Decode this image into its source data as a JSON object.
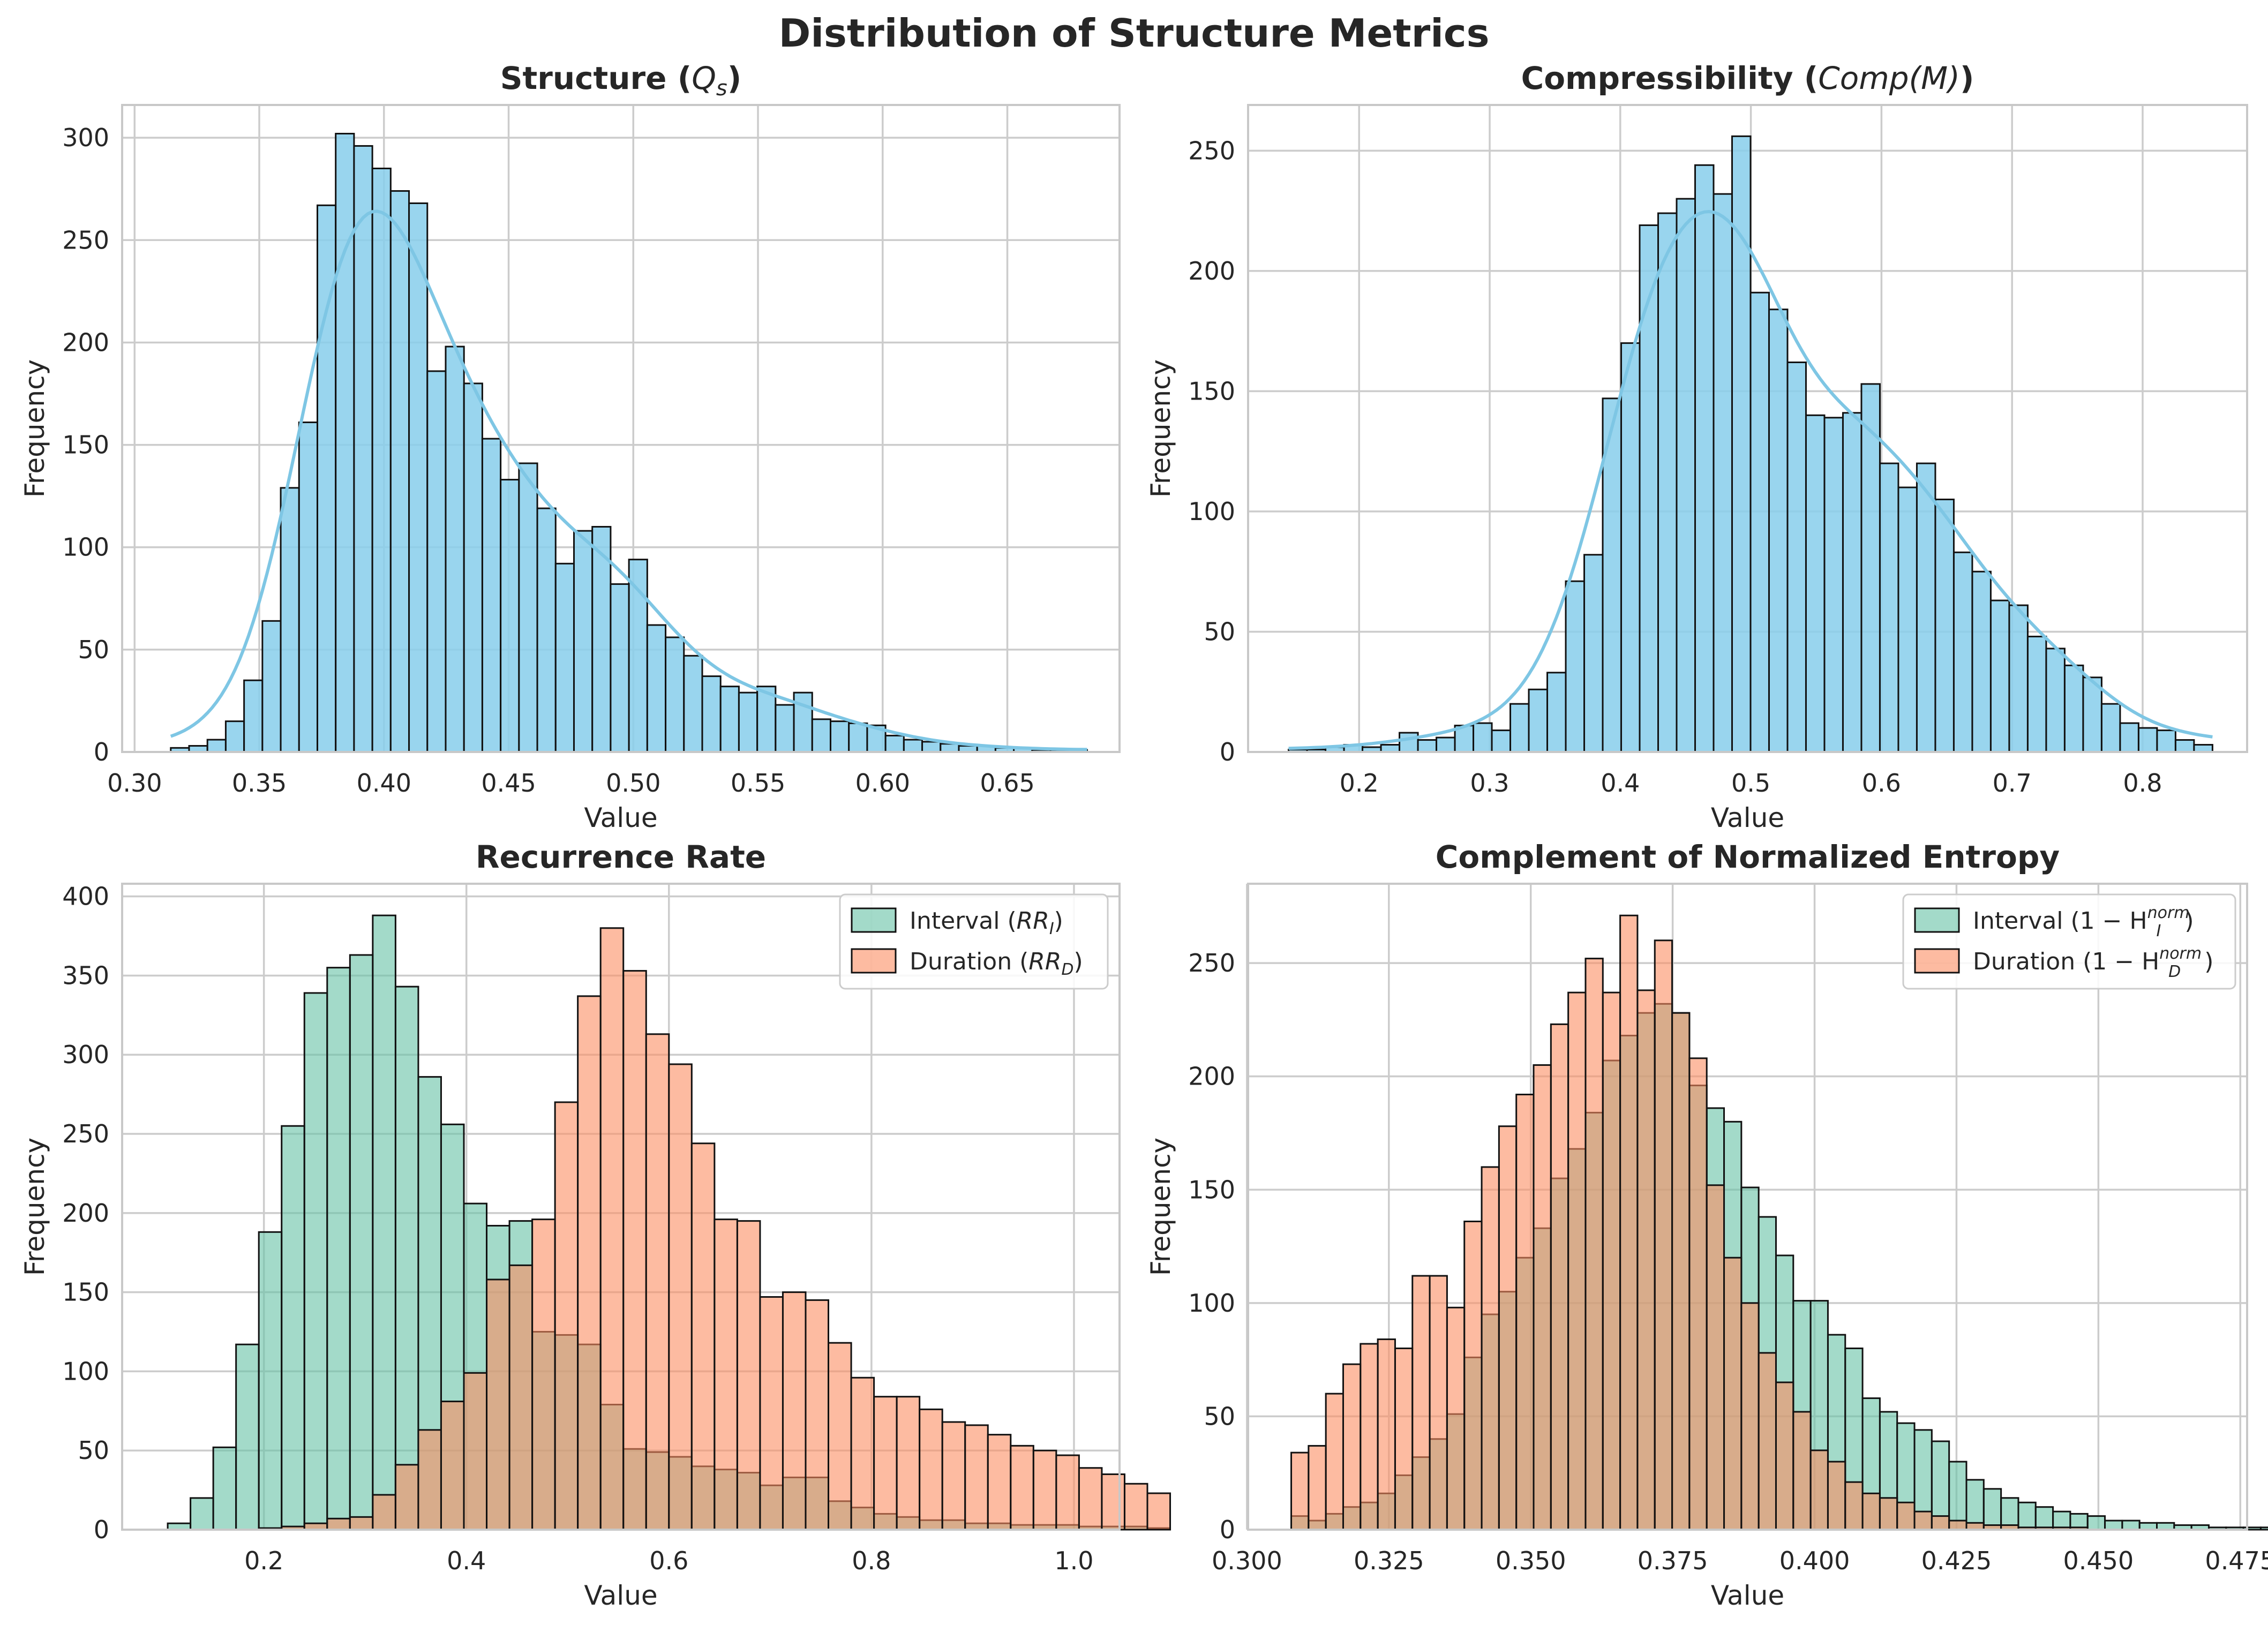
{
  "suptitle": "Distribution of Structure Metrics",
  "colors": {
    "blue": "#87ceeb",
    "blue_kde": "#7ec6e4",
    "green": "#66c2a5",
    "orange": "#fc8d62",
    "grid": "#cccccc",
    "edge": "#111111"
  },
  "chart_data": [
    {
      "type": "bar",
      "title": "Structure (Qs)",
      "title_main": "Structure (",
      "title_math": "Q",
      "title_sub": "s",
      "title_end": ")",
      "xlabel": "Value",
      "ylabel": "Frequency",
      "xlim": [
        0.295,
        0.695
      ],
      "ylim": [
        0,
        316
      ],
      "xticks": [
        0.3,
        0.35,
        0.4,
        0.45,
        0.5,
        0.55,
        0.6,
        0.65
      ],
      "xtick_labels": [
        "0.30",
        "0.35",
        "0.40",
        "0.45",
        "0.50",
        "0.55",
        "0.60",
        "0.65"
      ],
      "yticks": [
        0,
        50,
        100,
        150,
        200,
        250,
        300
      ],
      "ytick_labels": [
        "0",
        "50",
        "100",
        "150",
        "200",
        "250",
        "300"
      ],
      "bin_start": 0.3145,
      "bin_width": 0.00735,
      "grid": true,
      "series": [
        {
          "color": "blue",
          "kde": true,
          "values": [
            2,
            3,
            6,
            15,
            35,
            64,
            129,
            161,
            267,
            302,
            296,
            285,
            274,
            268,
            186,
            198,
            180,
            153,
            133,
            141,
            119,
            92,
            108,
            110,
            82,
            94,
            62,
            56,
            47,
            37,
            32,
            29,
            32,
            23,
            29,
            16,
            15,
            14,
            13,
            8,
            6,
            5,
            4,
            3,
            3,
            2,
            2,
            1,
            1,
            1
          ]
        }
      ]
    },
    {
      "type": "bar",
      "title": "Compressibility (Comp(M))",
      "title_main": "Compressibility (",
      "title_math": "Comp(M)",
      "title_sub": "",
      "title_end": ")",
      "xlabel": "Value",
      "ylabel": "Frequency",
      "xlim": [
        0.115,
        0.88
      ],
      "ylim": [
        0,
        269
      ],
      "xticks": [
        0.2,
        0.3,
        0.4,
        0.5,
        0.6,
        0.7,
        0.8
      ],
      "xtick_labels": [
        "0.2",
        "0.3",
        "0.4",
        "0.5",
        "0.6",
        "0.7",
        "0.8"
      ],
      "yticks": [
        0,
        50,
        100,
        150,
        200,
        250
      ],
      "ytick_labels": [
        "0",
        "50",
        "100",
        "150",
        "200",
        "250"
      ],
      "bin_start": 0.146,
      "bin_width": 0.01415,
      "grid": true,
      "series": [
        {
          "color": "blue",
          "kde": true,
          "values": [
            1,
            1,
            2,
            3,
            2,
            3,
            8,
            5,
            6,
            11,
            12,
            9,
            20,
            26,
            33,
            71,
            82,
            147,
            170,
            219,
            224,
            230,
            244,
            232,
            256,
            191,
            184,
            162,
            140,
            139,
            141,
            153,
            120,
            110,
            120,
            105,
            83,
            75,
            63,
            61,
            48,
            43,
            36,
            31,
            20,
            12,
            10,
            9,
            5,
            3
          ]
        }
      ]
    },
    {
      "type": "bar",
      "title": "Recurrence Rate",
      "xlabel": "Value",
      "ylabel": "Frequency",
      "xlim": [
        0.06,
        1.045
      ],
      "ylim": [
        0,
        408
      ],
      "xticks": [
        0.2,
        0.4,
        0.6,
        0.8,
        1.0
      ],
      "xtick_labels": [
        "0.2",
        "0.4",
        "0.6",
        "0.8",
        "1.0"
      ],
      "yticks": [
        0,
        50,
        100,
        150,
        200,
        250,
        300,
        350,
        400
      ],
      "ytick_labels": [
        "0",
        "50",
        "100",
        "150",
        "200",
        "250",
        "300",
        "350",
        "400"
      ],
      "bin_start": 0.105,
      "bin_width": 0.0225,
      "grid": true,
      "legend": "top-right",
      "series": [
        {
          "name": "Interval",
          "legend_math": "RR",
          "legend_sub": "I",
          "color": "green",
          "values": [
            4,
            20,
            52,
            117,
            188,
            255,
            339,
            355,
            363,
            388,
            343,
            286,
            256,
            206,
            192,
            195,
            125,
            123,
            117,
            79,
            51,
            49,
            46,
            40,
            38,
            36,
            28,
            33,
            33,
            18,
            14,
            10,
            8,
            6,
            6,
            4,
            4,
            3,
            3,
            3,
            2,
            2,
            2,
            1
          ]
        },
        {
          "name": "Duration",
          "legend_math": "RR",
          "legend_sub": "D",
          "color": "orange",
          "values": [
            0,
            0,
            0,
            0,
            1,
            2,
            4,
            7,
            8,
            22,
            41,
            63,
            81,
            99,
            158,
            167,
            196,
            270,
            337,
            380,
            353,
            313,
            294,
            244,
            196,
            195,
            147,
            150,
            145,
            118,
            96,
            84,
            84,
            76,
            68,
            66,
            60,
            53,
            50,
            47,
            39,
            35,
            29,
            23
          ]
        }
      ]
    },
    {
      "type": "bar",
      "title": "Complement of Normalized Entropy",
      "xlabel": "Value",
      "ylabel": "Frequency",
      "xlim": [
        0.3002,
        0.4762
      ],
      "ylim": [
        0,
        285
      ],
      "xticks": [
        0.3,
        0.325,
        0.35,
        0.375,
        0.4,
        0.425,
        0.45,
        0.475
      ],
      "xtick_labels": [
        "0.300",
        "0.325",
        "0.350",
        "0.375",
        "0.400",
        "0.425",
        "0.450",
        "0.475"
      ],
      "yticks": [
        0,
        50,
        100,
        150,
        200,
        250
      ],
      "ytick_labels": [
        "0",
        "50",
        "100",
        "150",
        "200",
        "250"
      ],
      "bin_start": 0.3078,
      "bin_width": 0.00305,
      "grid": true,
      "legend": "top-right",
      "series": [
        {
          "name": "Interval",
          "legend_math": "1 − H",
          "legend_sub": "I",
          "legend_sup": "norm",
          "color": "green",
          "values": [
            6,
            4,
            7,
            10,
            12,
            16,
            24,
            32,
            40,
            51,
            76,
            95,
            105,
            120,
            133,
            155,
            168,
            184,
            207,
            218,
            228,
            232,
            228,
            196,
            186,
            180,
            151,
            138,
            121,
            101,
            101,
            86,
            80,
            58,
            52,
            47,
            44,
            39,
            30,
            22,
            18,
            14,
            12,
            10,
            8,
            7,
            6,
            4,
            4,
            3,
            3,
            2,
            2,
            1,
            1,
            1,
            1,
            0,
            0,
            1
          ]
        },
        {
          "name": "Duration",
          "legend_math": "1 − H",
          "legend_sub": "D",
          "legend_sup": "norm",
          "color": "orange",
          "values": [
            34,
            37,
            60,
            73,
            82,
            84,
            80,
            112,
            112,
            98,
            136,
            160,
            178,
            192,
            205,
            223,
            237,
            252,
            237,
            271,
            238,
            260,
            228,
            208,
            152,
            120,
            100,
            78,
            65,
            52,
            35,
            30,
            21,
            16,
            14,
            12,
            8,
            6,
            4,
            3,
            2,
            2,
            1,
            1,
            1,
            1,
            0,
            0,
            0,
            0,
            0,
            0,
            0,
            0,
            0,
            0,
            0,
            0,
            0,
            0
          ]
        }
      ]
    }
  ]
}
